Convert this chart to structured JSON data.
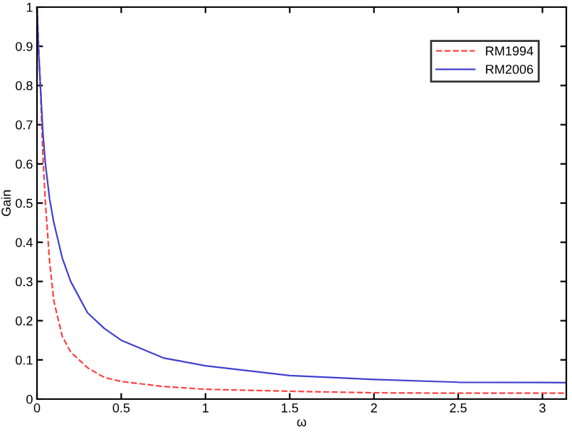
{
  "chart_data": {
    "type": "line",
    "xlabel": "ω",
    "ylabel": "Gain",
    "xlim": [
      0,
      3.1416
    ],
    "ylim": [
      0,
      1
    ],
    "xticks": [
      0,
      {
        "value": 0.5,
        "label": "0.5"
      },
      1,
      {
        "value": 1.5,
        "label": "1.5"
      },
      2,
      {
        "value": 2.5,
        "label": "2.5"
      },
      3
    ],
    "yticks": [
      0,
      0.1,
      0.2,
      0.3,
      0.4,
      0.5,
      0.6,
      0.7,
      0.8,
      0.9,
      1
    ],
    "legend": "top right",
    "grid": false,
    "series": [
      {
        "name": "RM1994",
        "color": "#ff4040",
        "line_style": "dashed",
        "x": [
          0,
          0.01,
          0.02,
          0.035,
          0.05,
          0.075,
          0.1,
          0.15,
          0.2,
          0.3,
          0.4,
          0.5,
          0.75,
          1,
          1.5,
          2,
          2.5,
          3.1416
        ],
        "values": [
          1,
          0.9,
          0.8,
          0.62,
          0.5,
          0.35,
          0.25,
          0.16,
          0.12,
          0.08,
          0.055,
          0.045,
          0.032,
          0.025,
          0.02,
          0.016,
          0.015,
          0.015
        ]
      },
      {
        "name": "RM2006",
        "color": "#4040d0",
        "line_style": "solid",
        "x": [
          0,
          0.01,
          0.02,
          0.035,
          0.05,
          0.075,
          0.1,
          0.15,
          0.2,
          0.3,
          0.4,
          0.5,
          0.75,
          1,
          1.5,
          2,
          2.5,
          3.1416
        ],
        "values": [
          1,
          0.88,
          0.8,
          0.68,
          0.6,
          0.51,
          0.45,
          0.36,
          0.3,
          0.22,
          0.18,
          0.15,
          0.105,
          0.085,
          0.06,
          0.05,
          0.043,
          0.042
        ]
      }
    ]
  }
}
